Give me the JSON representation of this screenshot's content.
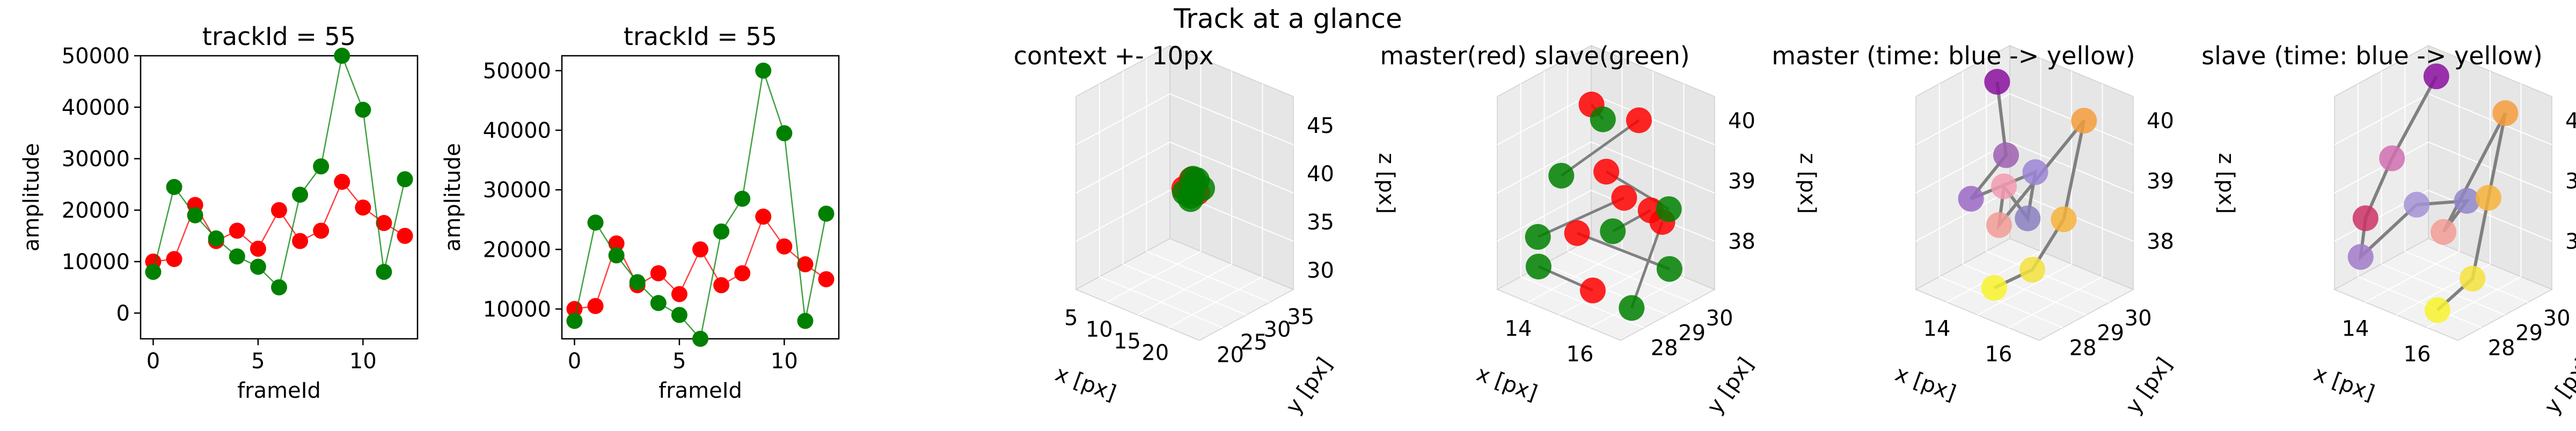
{
  "figure": {
    "suptitle": "Track at a glance"
  },
  "colors": {
    "master": "#ff0000",
    "slave": "#008000",
    "line_master": "#ff3333",
    "line_slave": "#2f9b2f",
    "track_line": "#808080",
    "pane": "#ebebeb",
    "grid": "#ffffff"
  },
  "chart_data": [
    {
      "type": "line",
      "title": "trackId = 55",
      "xlabel": "frameId",
      "ylabel": "amplitude",
      "x": [
        0,
        1,
        2,
        3,
        4,
        5,
        6,
        7,
        8,
        9,
        10,
        11,
        12
      ],
      "xlim": [
        -0.6,
        12.6
      ],
      "ylim": [
        -5000,
        50000
      ],
      "xticks": [
        "0",
        "5",
        "10"
      ],
      "yticks": [
        "0",
        "10000",
        "20000",
        "30000",
        "40000",
        "50000"
      ],
      "series": [
        {
          "color": "#ff0000",
          "values": [
            10000,
            10500,
            21000,
            14000,
            16000,
            12500,
            20000,
            14000,
            16000,
            25500,
            20500,
            17500,
            15000
          ]
        },
        {
          "color": "#008000",
          "values": [
            8000,
            24500,
            19000,
            14500,
            11000,
            9000,
            5000,
            23000,
            28500,
            50000,
            39500,
            8000,
            26000
          ]
        }
      ]
    },
    {
      "type": "line",
      "title": "trackId = 55",
      "xlabel": "frameId",
      "ylabel": "amplitude",
      "x": [
        0,
        1,
        2,
        3,
        4,
        5,
        6,
        7,
        8,
        9,
        10,
        11,
        12
      ],
      "xlim": [
        -0.6,
        12.6
      ],
      "ylim": [
        5000,
        52500
      ],
      "xticks": [
        "0",
        "5",
        "10"
      ],
      "yticks": [
        "10000",
        "20000",
        "30000",
        "40000",
        "50000"
      ],
      "series": [
        {
          "color": "#ff0000",
          "values": [
            10000,
            10500,
            21000,
            14000,
            16000,
            12500,
            20000,
            14000,
            16000,
            25500,
            20500,
            17500,
            15000
          ]
        },
        {
          "color": "#008000",
          "values": [
            8000,
            24500,
            19000,
            14500,
            11000,
            9000,
            5000,
            23000,
            28500,
            50000,
            39500,
            8000,
            26000
          ]
        }
      ]
    },
    {
      "type": "scatter",
      "title": "context +- 10px",
      "xlabel": "x [px]",
      "ylabel": "y [px]",
      "zlabel": "z [px]",
      "xticks": [
        "5",
        "10",
        "15",
        "20"
      ],
      "yticks": [
        "20",
        "25",
        "30",
        "35"
      ],
      "zticks": [
        "30",
        "35",
        "40",
        "45"
      ],
      "xlim": [
        3,
        25
      ],
      "ylim": [
        18,
        38
      ],
      "zlim": [
        28,
        48
      ],
      "points": [
        {
          "x": 13.5,
          "y": 28.5,
          "z": 38.2,
          "color": "#ff0000"
        },
        {
          "x": 14.5,
          "y": 28.7,
          "z": 38.6,
          "color": "#ff0000"
        },
        {
          "x": 15.2,
          "y": 29.2,
          "z": 38.0,
          "color": "#ff0000"
        },
        {
          "x": 14.0,
          "y": 29.5,
          "z": 39.0,
          "color": "#ff0000"
        },
        {
          "x": 13.2,
          "y": 29.0,
          "z": 37.6,
          "color": "#008000"
        },
        {
          "x": 14.8,
          "y": 28.3,
          "z": 37.8,
          "color": "#008000"
        },
        {
          "x": 15.6,
          "y": 29.8,
          "z": 38.4,
          "color": "#008000"
        },
        {
          "x": 13.8,
          "y": 30.0,
          "z": 38.9,
          "color": "#008000"
        },
        {
          "x": 14.3,
          "y": 28.9,
          "z": 37.2,
          "color": "#008000"
        },
        {
          "x": 15.0,
          "y": 29.4,
          "z": 39.2,
          "color": "#008000"
        }
      ]
    },
    {
      "type": "scatter",
      "title": "master(red) slave(green)",
      "xlabel": "x [px]",
      "ylabel": "y [px]",
      "zlabel": "z [px]",
      "xticks": [
        "14",
        "16"
      ],
      "yticks": [
        "28",
        "29",
        "30"
      ],
      "zticks": [
        "38",
        "39",
        "40"
      ],
      "xlim": [
        12.8,
        16.8
      ],
      "ylim": [
        27.2,
        30.6
      ],
      "zlim": [
        37.2,
        40.4
      ],
      "points": [
        {
          "x": 14.6,
          "y": 28.6,
          "z": 40.3,
          "color": "#ff0000"
        },
        {
          "x": 15.6,
          "y": 29.2,
          "z": 40.1,
          "color": "#ff0000"
        },
        {
          "x": 14.9,
          "y": 28.8,
          "z": 39.2,
          "color": "#ff0000"
        },
        {
          "x": 15.3,
          "y": 29.0,
          "z": 38.8,
          "color": "#ff0000"
        },
        {
          "x": 15.8,
          "y": 29.4,
          "z": 38.6,
          "color": "#ff0000"
        },
        {
          "x": 14.4,
          "y": 28.3,
          "z": 38.2,
          "color": "#ff0000"
        },
        {
          "x": 15.0,
          "y": 28.2,
          "z": 37.4,
          "color": "#ff0000"
        },
        {
          "x": 16.0,
          "y": 29.6,
          "z": 38.4,
          "color": "#ff0000"
        },
        {
          "x": 14.7,
          "y": 28.9,
          "z": 40.0,
          "color": "#008000"
        },
        {
          "x": 13.8,
          "y": 28.4,
          "z": 39.0,
          "color": "#008000"
        },
        {
          "x": 16.3,
          "y": 29.5,
          "z": 38.7,
          "color": "#008000"
        },
        {
          "x": 13.4,
          "y": 28.0,
          "z": 38.0,
          "color": "#008000"
        },
        {
          "x": 15.2,
          "y": 28.7,
          "z": 38.3,
          "color": "#008000"
        },
        {
          "x": 16.5,
          "y": 29.3,
          "z": 37.8,
          "color": "#008000"
        },
        {
          "x": 13.6,
          "y": 27.8,
          "z": 37.6,
          "color": "#008000"
        },
        {
          "x": 15.9,
          "y": 28.6,
          "z": 37.2,
          "color": "#008000"
        }
      ]
    },
    {
      "type": "scatter",
      "title": "master (time: blue -> yellow)",
      "xlabel": "x [px]",
      "ylabel": "y [px]",
      "zlabel": "z [px]",
      "xticks": [
        "14",
        "16"
      ],
      "yticks": [
        "28",
        "29",
        "30"
      ],
      "zticks": [
        "38",
        "39",
        "40"
      ],
      "xlim": [
        12.8,
        16.8
      ],
      "ylim": [
        27.2,
        30.6
      ],
      "zlim": [
        37.2,
        40.4
      ],
      "points": [
        {
          "x": 14.0,
          "y": 28.8,
          "z": 40.5,
          "color": "#8a0f9f"
        },
        {
          "x": 14.2,
          "y": 28.9,
          "z": 39.3,
          "color": "#9d5fb0"
        },
        {
          "x": 13.6,
          "y": 28.3,
          "z": 38.6,
          "color": "#9b6ac6"
        },
        {
          "x": 14.7,
          "y": 29.4,
          "z": 39.0,
          "color": "#9b84d4"
        },
        {
          "x": 14.9,
          "y": 28.9,
          "z": 38.4,
          "color": "#8a7fbf"
        },
        {
          "x": 14.4,
          "y": 28.6,
          "z": 38.9,
          "color": "#f29bb0"
        },
        {
          "x": 14.6,
          "y": 28.2,
          "z": 38.4,
          "color": "#f29b95"
        },
        {
          "x": 16.1,
          "y": 29.6,
          "z": 40.1,
          "color": "#f59c3c"
        },
        {
          "x": 15.8,
          "y": 29.2,
          "z": 38.5,
          "color": "#f6b33a"
        },
        {
          "x": 15.5,
          "y": 28.4,
          "z": 37.8,
          "color": "#f4e23c"
        },
        {
          "x": 14.8,
          "y": 27.8,
          "z": 37.5,
          "color": "#f8f32e"
        }
      ],
      "path": [
        0,
        1,
        2,
        3,
        4,
        5,
        6,
        7,
        8,
        9,
        10
      ]
    },
    {
      "type": "scatter",
      "title": "slave (time: blue -> yellow)",
      "xlabel": "x [px]",
      "ylabel": "y [px]",
      "zlabel": "z [px]",
      "xticks": [
        "14",
        "16"
      ],
      "yticks": [
        "28",
        "29",
        "30"
      ],
      "zticks": [
        "38",
        "39",
        "40"
      ],
      "xlim": [
        12.8,
        16.8
      ],
      "ylim": [
        27.2,
        30.6
      ],
      "zlim": [
        37.2,
        40.4
      ],
      "points": [
        {
          "x": 14.4,
          "y": 29.1,
          "z": 40.6,
          "color": "#8a0f9f"
        },
        {
          "x": 13.5,
          "y": 28.5,
          "z": 39.2,
          "color": "#d070b0"
        },
        {
          "x": 13.0,
          "y": 28.1,
          "z": 38.2,
          "color": "#cc3366"
        },
        {
          "x": 13.2,
          "y": 27.7,
          "z": 37.7,
          "color": "#a17bc9"
        },
        {
          "x": 14.3,
          "y": 28.5,
          "z": 38.6,
          "color": "#a593d6"
        },
        {
          "x": 15.3,
          "y": 29.2,
          "z": 38.7,
          "color": "#8f86c8"
        },
        {
          "x": 14.9,
          "y": 28.8,
          "z": 38.2,
          "color": "#f29b95"
        },
        {
          "x": 16.1,
          "y": 29.7,
          "z": 40.2,
          "color": "#f59c3c"
        },
        {
          "x": 16.0,
          "y": 29.2,
          "z": 38.9,
          "color": "#f6b33a"
        },
        {
          "x": 16.2,
          "y": 28.4,
          "z": 37.8,
          "color": "#f4e23c"
        },
        {
          "x": 15.6,
          "y": 27.8,
          "z": 37.3,
          "color": "#f8f32e"
        }
      ],
      "path": [
        0,
        1,
        2,
        3,
        4,
        5,
        6,
        7,
        8,
        9,
        10
      ]
    }
  ]
}
